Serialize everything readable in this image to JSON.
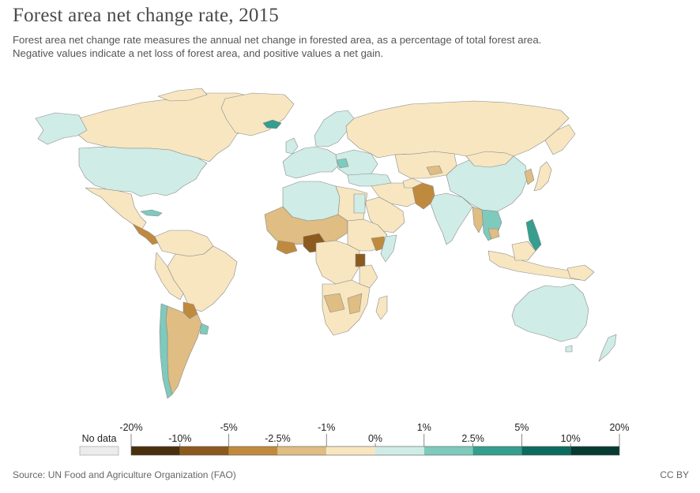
{
  "header": {
    "title": "Forest area net change rate, 2015",
    "subtitle_line1": "Forest area net change rate measures the annual net change in forested area, as a percentage of total forest area.",
    "subtitle_line2": "Negative values indicate a net loss of forest area, and positive values a net gain."
  },
  "legend": {
    "no_data_label": "No data",
    "no_data_color": "#ececec",
    "bins": [
      {
        "color": "#4a2f0e"
      },
      {
        "color": "#8c5a1e"
      },
      {
        "color": "#c08a3e"
      },
      {
        "color": "#dfbd83"
      },
      {
        "color": "#f7e6c0"
      },
      {
        "color": "#cfece6"
      },
      {
        "color": "#7ecabc"
      },
      {
        "color": "#359e8e"
      },
      {
        "color": "#0c6b5e"
      },
      {
        "color": "#063b31"
      }
    ],
    "top_labels": [
      "-20%",
      "-5%",
      "-1%",
      "1%",
      "5%",
      "20%"
    ],
    "bottom_labels": [
      "-10%",
      "-2.5%",
      "0%",
      "2.5%",
      "10%"
    ]
  },
  "map_colors": {
    "ocean": "#ffffff",
    "border": "#8a8a8a",
    "neutral": "#f7e6c0",
    "light_gain": "#cfece6",
    "mid_gain": "#7ecabc",
    "strong_gain": "#359e8e",
    "light_loss": "#dfbd83",
    "mid_loss": "#c08a3e",
    "strong_loss": "#8c5a1e"
  },
  "footer": {
    "source": "Source: UN Food and Agriculture Organization (FAO)",
    "license": "CC BY"
  }
}
